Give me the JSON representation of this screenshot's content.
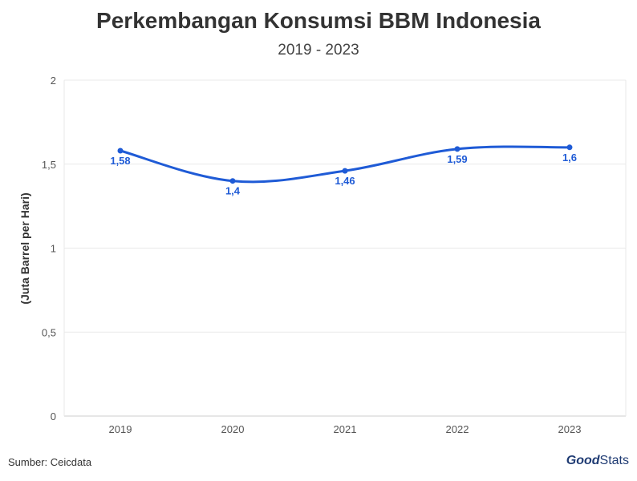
{
  "chart_data": {
    "type": "line",
    "title": "Perkembangan Konsumsi BBM Indonesia",
    "subtitle": "2019 - 2023",
    "ylabel": "(Juta Barrel per Hari)",
    "xlabel": "",
    "categories": [
      "2019",
      "2020",
      "2021",
      "2022",
      "2023"
    ],
    "series": [
      {
        "values": [
          1.58,
          1.4,
          1.46,
          1.59,
          1.6
        ],
        "labels": [
          "1,58",
          "1,4",
          "1,46",
          "1,59",
          "1,6"
        ]
      }
    ],
    "ylim": [
      0,
      2
    ],
    "yticks": [
      0,
      0.5,
      1,
      1.5,
      2
    ],
    "ytick_labels": [
      "0",
      "0,5",
      "1",
      "1,5",
      "2"
    ],
    "grid": true,
    "line_color": "#1f5bd6"
  },
  "footer": {
    "source": "Sumber: Ceicdata",
    "logo_good": "Good",
    "logo_stats": "Stats"
  }
}
